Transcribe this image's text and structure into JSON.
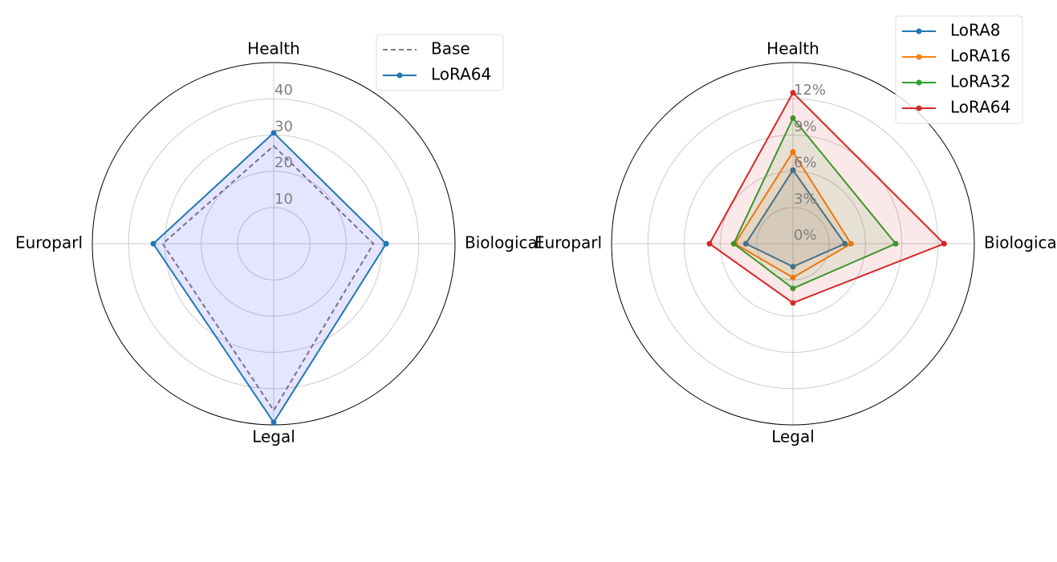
{
  "chart_data": [
    {
      "type": "radar",
      "categories": [
        "Health",
        "Biological",
        "Legal",
        "Europarl"
      ],
      "rlim": [
        0,
        50
      ],
      "rticks": [
        10,
        20,
        30,
        40
      ],
      "legend": "upper right",
      "series": [
        {
          "name": "Base",
          "color": "#808080",
          "linestyle": "dashed",
          "marker": false,
          "fill": false,
          "values": [
            27,
            27.5,
            46,
            30.6
          ]
        },
        {
          "name": "LoRA64",
          "color": "#1f77b4",
          "linestyle": "solid",
          "marker": true,
          "fill": true,
          "fill_color": "#0000ff",
          "values": [
            30.6,
            31,
            49.3,
            33.2
          ]
        }
      ]
    },
    {
      "type": "radar",
      "categories": [
        "Health",
        "Biological",
        "Legal",
        "Europarl"
      ],
      "rlim": [
        0,
        15
      ],
      "rticks": [
        {
          "value": 0,
          "label": "0%"
        },
        {
          "value": 3,
          "label": "3%"
        },
        {
          "value": 6,
          "label": "6%"
        },
        {
          "value": 9,
          "label": "9%"
        },
        {
          "value": 12,
          "label": "12%"
        }
      ],
      "legend": "upper right",
      "series": [
        {
          "name": "LoRA8",
          "color": "#1f77b4",
          "linestyle": "solid",
          "marker": true,
          "fill": true,
          "values": [
            6.1,
            4.3,
            1.9,
            3.9
          ]
        },
        {
          "name": "LoRA16",
          "color": "#ff7f0e",
          "linestyle": "solid",
          "marker": true,
          "fill": true,
          "values": [
            7.6,
            4.8,
            2.8,
            4.8
          ]
        },
        {
          "name": "LoRA32",
          "color": "#2ca02c",
          "linestyle": "solid",
          "marker": true,
          "fill": true,
          "values": [
            10.4,
            8.5,
            3.7,
            4.9
          ]
        },
        {
          "name": "LoRA64",
          "color": "#d62728",
          "linestyle": "solid",
          "marker": true,
          "fill": true,
          "values": [
            12.5,
            12.5,
            4.9,
            6.9
          ]
        }
      ]
    }
  ]
}
